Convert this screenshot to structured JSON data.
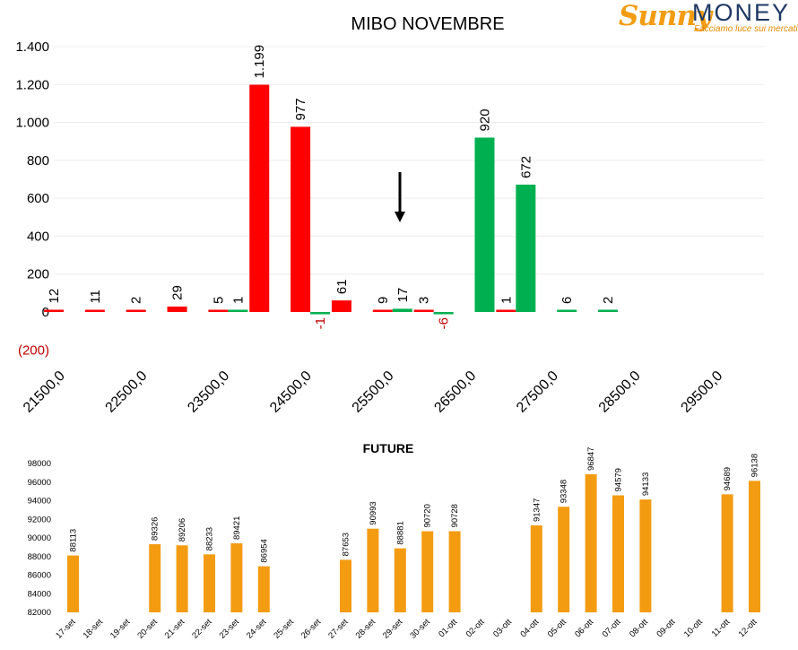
{
  "brand": {
    "name_part1": "Sunny",
    "name_part2": "MONEY",
    "tagline": "Facciamo luce sui mercati"
  },
  "colors": {
    "negative": "#ff0000",
    "positive": "#00b050",
    "future": "#f39c12",
    "neg_label": "#c00000"
  },
  "chart_data": [
    {
      "type": "bar",
      "title": "MIBO NOVEMBRE",
      "ylim": [
        -200,
        1400
      ],
      "yticks": [
        {
          "v": 1400,
          "t": "1.400"
        },
        {
          "v": 1200,
          "t": "1.200"
        },
        {
          "v": 1000,
          "t": "1.000"
        },
        {
          "v": 800,
          "t": "800"
        },
        {
          "v": 600,
          "t": "600"
        },
        {
          "v": 400,
          "t": "400"
        },
        {
          "v": 200,
          "t": "200"
        },
        {
          "v": 0,
          "t": "0"
        },
        {
          "v": -200,
          "t": "(200)"
        }
      ],
      "xticks": [
        {
          "strike": 21500,
          "label": "21500,0"
        },
        {
          "strike": 22500,
          "label": "22500,0"
        },
        {
          "strike": 23500,
          "label": "23500,0"
        },
        {
          "strike": 24500,
          "label": "24500,0"
        },
        {
          "strike": 25500,
          "label": "25500,0"
        },
        {
          "strike": 26500,
          "label": "26500,0"
        },
        {
          "strike": 27500,
          "label": "27500,0"
        },
        {
          "strike": 28500,
          "label": "28500,0"
        },
        {
          "strike": 29500,
          "label": "29500,0"
        }
      ],
      "grid": true,
      "annotation": "arrow pointing down near strike 25500",
      "series": [
        {
          "color": "red",
          "points": [
            {
              "strike": 21500,
              "value": 12,
              "label": "12"
            },
            {
              "strike": 22000,
              "value": 11,
              "label": "11"
            },
            {
              "strike": 22500,
              "value": 2,
              "label": "2"
            },
            {
              "strike": 23000,
              "value": 29,
              "label": "29"
            },
            {
              "strike": 23500,
              "value": 5,
              "label": "5"
            },
            {
              "strike": 24000,
              "value": 1199,
              "label": "1.199"
            },
            {
              "strike": 24500,
              "value": 977,
              "label": "977"
            },
            {
              "strike": 25000,
              "value": 61,
              "label": "61"
            },
            {
              "strike": 25500,
              "value": 9,
              "label": "9"
            },
            {
              "strike": 26000,
              "value": 3,
              "label": "3"
            },
            {
              "strike": 27000,
              "value": 1,
              "label": "1"
            }
          ]
        },
        {
          "color": "green",
          "points": [
            {
              "strike": 23500,
              "value": 1,
              "label": "1"
            },
            {
              "strike": 24500,
              "value": -1,
              "label": "-1"
            },
            {
              "strike": 25500,
              "value": 17,
              "label": "17"
            },
            {
              "strike": 26000,
              "value": -6,
              "label": "-6"
            },
            {
              "strike": 26500,
              "value": 920,
              "label": "920"
            },
            {
              "strike": 27000,
              "value": 672,
              "label": "672"
            },
            {
              "strike": 27500,
              "value": 6,
              "label": "6"
            },
            {
              "strike": 28000,
              "value": 2,
              "label": "2"
            }
          ]
        }
      ]
    },
    {
      "type": "bar",
      "title": "FUTURE",
      "ylim": [
        82000,
        98000
      ],
      "yticks": [
        {
          "v": 98000,
          "t": "98000"
        },
        {
          "v": 96000,
          "t": "96000"
        },
        {
          "v": 94000,
          "t": "94000"
        },
        {
          "v": 92000,
          "t": "92000"
        },
        {
          "v": 90000,
          "t": "90000"
        },
        {
          "v": 88000,
          "t": "88000"
        },
        {
          "v": 86000,
          "t": "86000"
        },
        {
          "v": 84000,
          "t": "84000"
        },
        {
          "v": 82000,
          "t": "82000"
        }
      ],
      "categories": [
        "17-set",
        "18-set",
        "19-set",
        "20-set",
        "21-set",
        "22-set",
        "23-set",
        "24-set",
        "25-set",
        "26-set",
        "27-set",
        "28-set",
        "29-set",
        "30-set",
        "01-ott",
        "02-ott",
        "03-ott",
        "04-ott",
        "05-ott",
        "06-ott",
        "07-ott",
        "08-ott",
        "09-ott",
        "10-ott",
        "11-ott",
        "12-ott"
      ],
      "values": [
        88113,
        null,
        null,
        89326,
        89206,
        88233,
        89421,
        86954,
        null,
        null,
        87653,
        90993,
        88881,
        90720,
        90728,
        null,
        null,
        91347,
        93348,
        96847,
        94579,
        94133,
        null,
        null,
        94689,
        96138
      ],
      "labels": [
        "88113",
        "",
        "",
        "89326",
        "89206",
        "88233",
        "89421",
        "86954",
        "",
        "",
        "87653",
        "90993",
        "88881",
        "90720",
        "90728",
        "",
        "",
        "91347",
        "93348",
        "96847",
        "94579",
        "94133",
        "",
        "",
        "94689",
        "96138"
      ],
      "grid": false
    }
  ]
}
